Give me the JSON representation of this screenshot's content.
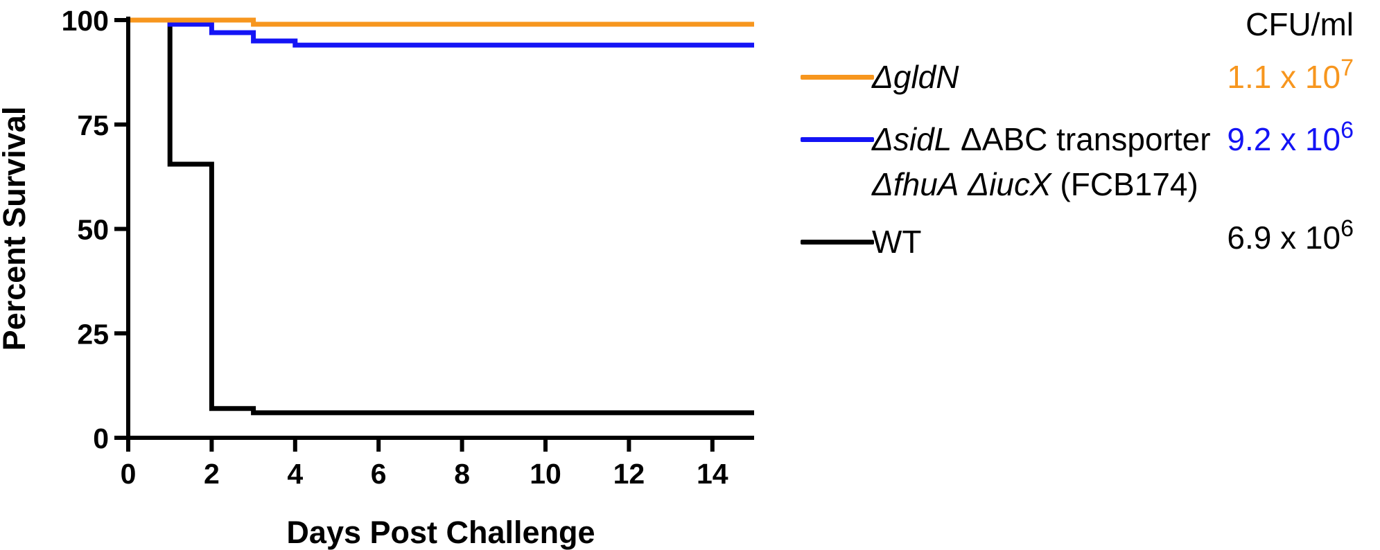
{
  "chart_data": {
    "type": "line",
    "step": true,
    "xlabel": "Days Post Challenge",
    "ylabel": "Percent Survival",
    "xlim": [
      0,
      15
    ],
    "ylim": [
      0,
      100
    ],
    "xticks": [
      "0",
      "2",
      "4",
      "6",
      "8",
      "10",
      "12",
      "14"
    ],
    "yticks": [
      "0",
      "25",
      "50",
      "75",
      "100"
    ],
    "grid": false,
    "legend_position": "right",
    "legend_header": "CFU/ml",
    "series": [
      {
        "key": "gldN",
        "color": "#F7961E",
        "cfu_base": "1.1 x 10",
        "cfu_exp": "7",
        "points": [
          [
            0,
            100
          ],
          [
            3,
            99
          ],
          [
            15,
            99
          ]
        ]
      },
      {
        "key": "fcb174",
        "color": "#1414F5",
        "cfu_base": "9.2 x 10",
        "cfu_exp": "6",
        "points": [
          [
            0,
            100
          ],
          [
            1,
            99
          ],
          [
            2,
            97
          ],
          [
            3,
            95
          ],
          [
            4,
            94
          ],
          [
            15,
            94
          ]
        ]
      },
      {
        "key": "wt",
        "name": "WT",
        "color": "#000000",
        "cfu_base": "6.9 x 10",
        "cfu_exp": "6",
        "points": [
          [
            0,
            100
          ],
          [
            1,
            65.5
          ],
          [
            2,
            7
          ],
          [
            3,
            6
          ],
          [
            15,
            6
          ]
        ]
      }
    ]
  }
}
